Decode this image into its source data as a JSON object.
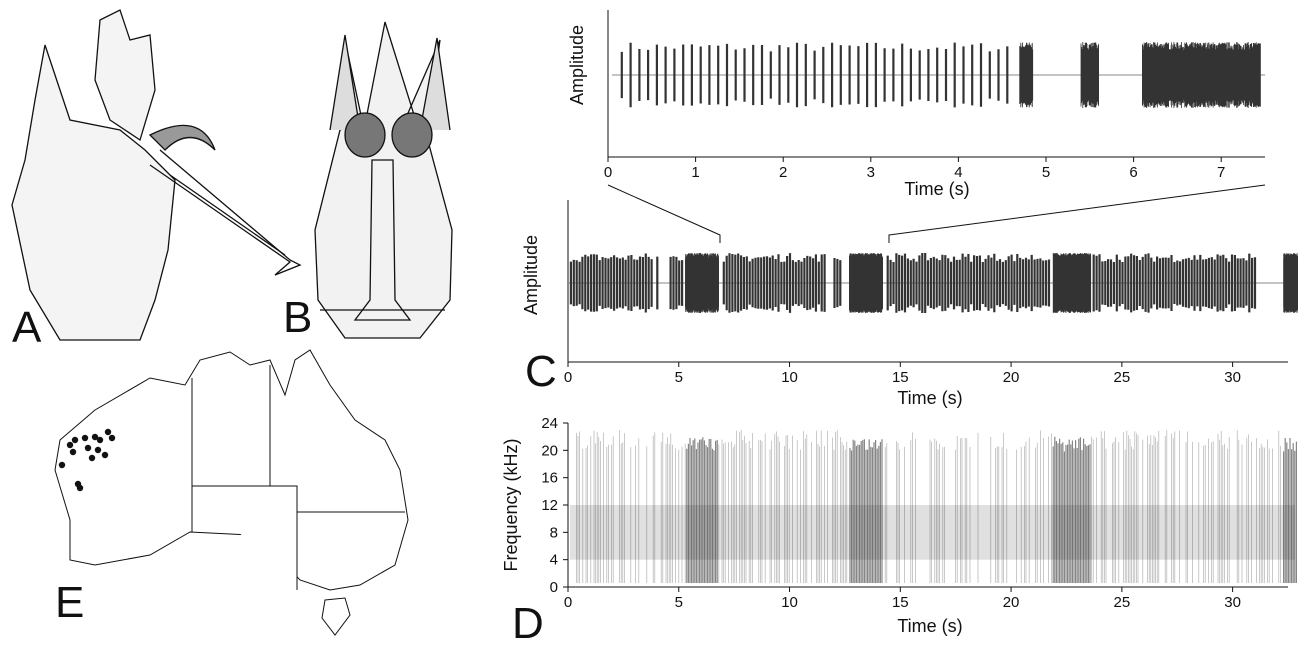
{
  "panels": {
    "a": "A",
    "b": "B",
    "c": "C",
    "d": "D",
    "e": "E"
  },
  "waveform_overview": {
    "ylabel": "Amplitude",
    "xlabel": "Time (s)",
    "xlim": [
      0,
      7.5
    ],
    "xticks": [
      0,
      1,
      2,
      3,
      4,
      5,
      6,
      7
    ]
  },
  "waveform_full": {
    "ylabel": "Amplitude",
    "xlabel": "Time (s)",
    "xlim": [
      0,
      32.5
    ],
    "xticks": [
      0,
      5,
      10,
      15,
      20,
      25,
      30
    ]
  },
  "spectrogram": {
    "ylabel": "Frequency (kHz)",
    "xlabel": "Time (s)",
    "xlim": [
      0,
      32.5
    ],
    "xticks": [
      0,
      5,
      10,
      15,
      20,
      25,
      30
    ],
    "ylim": [
      0,
      24
    ],
    "yticks": [
      0,
      4,
      8,
      12,
      16,
      20,
      24
    ]
  }
}
